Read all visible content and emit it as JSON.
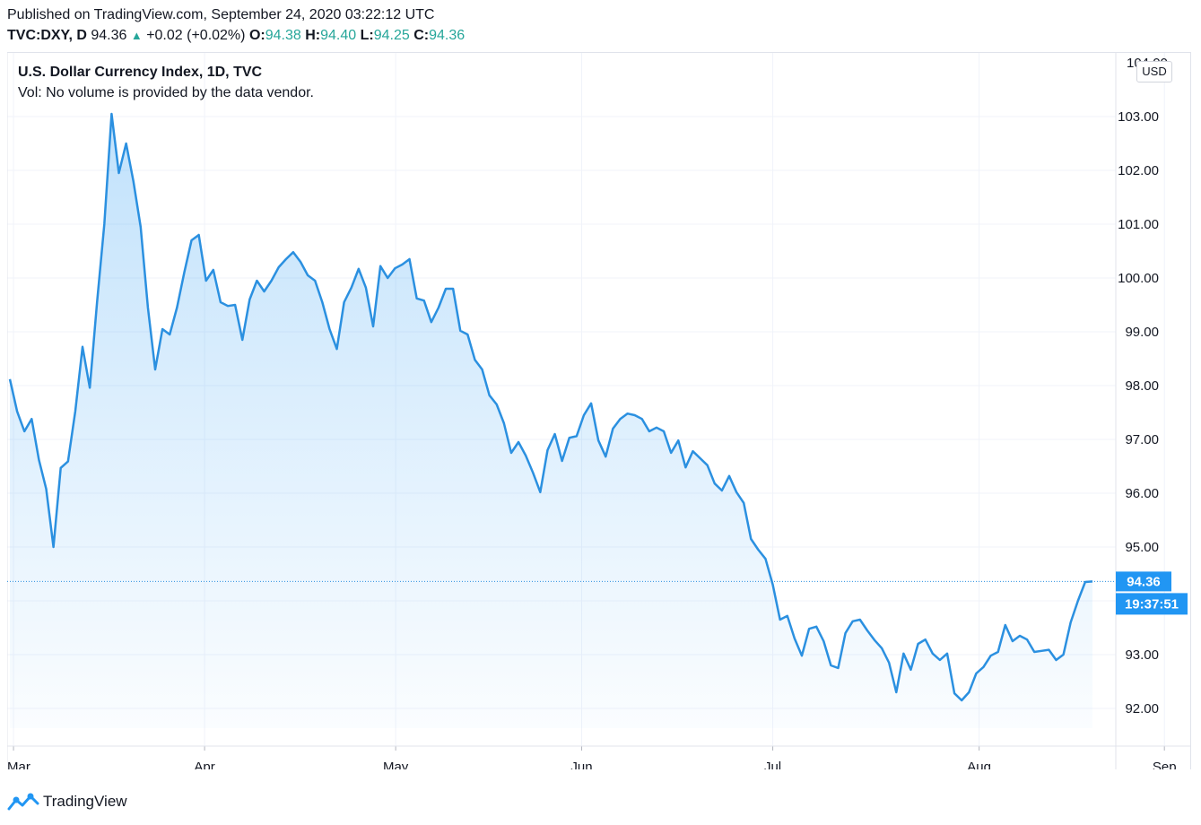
{
  "header": {
    "published": "Published on TradingView.com, September 24, 2020 03:22:12 UTC",
    "symbol": "TVC:DXY, D",
    "last": "94.36",
    "change": "+0.02 (+0.02%)",
    "o_label": "O:",
    "o_value": "94.38",
    "h_label": "H:",
    "h_value": "94.40",
    "l_label": "L:",
    "l_value": "94.25",
    "c_label": "C:",
    "c_value": "94.36"
  },
  "chart_title": "U.S. Dollar Currency Index, 1D, TVC",
  "volume_note": "Vol: No volume is provided by the data vendor.",
  "currency_label": "USD",
  "price_tag": "94.36",
  "countdown": "19:37:51",
  "footer_brand": "TradingView",
  "colors": {
    "line": "#2b90e0",
    "price_tag_bg": "#2196f3",
    "up": "#26a69a",
    "grid": "#f0f3fa"
  },
  "chart_data": {
    "type": "area",
    "title": "U.S. Dollar Currency Index, 1D, TVC",
    "xlabel": "",
    "ylabel": "",
    "ylim": [
      91.3,
      104.2
    ],
    "y_ticks": [
      92,
      93,
      94,
      95,
      96,
      97,
      98,
      99,
      100,
      101,
      102,
      103
    ],
    "y_tick_labels": [
      "92.00",
      "93.00",
      "",
      "95.00",
      "96.00",
      "97.00",
      "98.00",
      "99.00",
      "100.00",
      "101.00",
      "102.00",
      "103.00"
    ],
    "x_tick_labels": [
      "Mar",
      "Apr",
      "May",
      "Jun",
      "Jul",
      "Aug",
      "Sep"
    ],
    "x_tick_index": [
      0.5,
      26.8,
      53.1,
      78.7,
      105.0,
      133.4,
      158.9
    ],
    "grid": true,
    "last_value": 94.36,
    "values": [
      98.12,
      97.52,
      97.15,
      97.38,
      96.62,
      96.08,
      95.0,
      96.47,
      96.59,
      97.52,
      98.72,
      97.96,
      99.55,
      101.0,
      103.05,
      101.95,
      102.5,
      101.8,
      100.95,
      99.45,
      98.3,
      99.05,
      98.95,
      99.45,
      100.1,
      100.7,
      100.8,
      99.95,
      100.15,
      99.55,
      99.48,
      99.5,
      98.85,
      99.6,
      99.95,
      99.75,
      99.95,
      100.2,
      100.35,
      100.48,
      100.3,
      100.05,
      99.95,
      99.55,
      99.05,
      98.68,
      99.55,
      99.82,
      100.17,
      99.82,
      99.1,
      100.22,
      100.0,
      100.18,
      100.25,
      100.35,
      99.62,
      99.58,
      99.18,
      99.45,
      99.8,
      99.8,
      99.02,
      98.95,
      98.48,
      98.3,
      97.82,
      97.65,
      97.3,
      96.75,
      96.95,
      96.7,
      96.38,
      96.02,
      96.8,
      97.1,
      96.6,
      97.03,
      97.06,
      97.45,
      97.67,
      96.98,
      96.68,
      97.2,
      97.38,
      97.48,
      97.45,
      97.38,
      97.15,
      97.22,
      97.15,
      96.75,
      96.98,
      96.48,
      96.78,
      96.65,
      96.52,
      96.18,
      96.05,
      96.32,
      96.02,
      95.82,
      95.15,
      94.95,
      94.78,
      94.3,
      93.65,
      93.72,
      93.3,
      92.98,
      93.48,
      93.52,
      93.25,
      92.8,
      92.75,
      93.4,
      93.62,
      93.65,
      93.45,
      93.27,
      93.12,
      92.85,
      92.3,
      93.02,
      92.72,
      93.2,
      93.28,
      93.02,
      92.9,
      93.02,
      92.28,
      92.15,
      92.3,
      92.65,
      92.77,
      92.98,
      93.05,
      93.55,
      93.25,
      93.35,
      93.28,
      93.05,
      93.07,
      93.09,
      92.9,
      93.0,
      93.6,
      94.0,
      94.35,
      94.36
    ]
  }
}
